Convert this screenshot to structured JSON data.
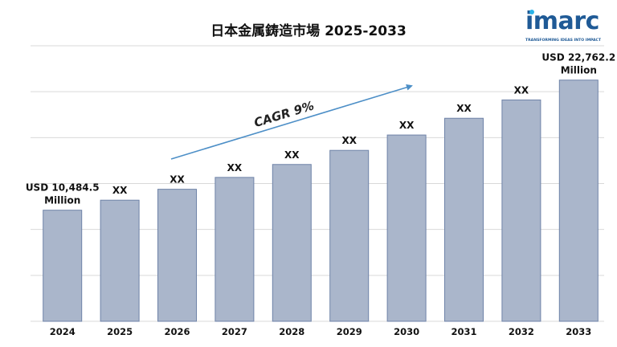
{
  "logo": {
    "word": "imarc",
    "tagline": "TRANSFORMING IDEAS INTO IMPACT"
  },
  "chart_data": {
    "type": "bar",
    "title": "日本金属鋳造市場 2025-2033",
    "categories": [
      "2024",
      "2025",
      "2026",
      "2027",
      "2028",
      "2029",
      "2030",
      "2031",
      "2032",
      "2033"
    ],
    "values": [
      10484.5,
      11430,
      12460,
      13580,
      14800,
      16130,
      17580,
      19160,
      20890,
      22762.2
    ],
    "data_labels": [
      "USD 10,484.5\nMillion",
      "XX",
      "XX",
      "XX",
      "XX",
      "XX",
      "XX",
      "XX",
      "XX",
      "USD 22,762.2\nMillion"
    ],
    "ylim": [
      0,
      26000
    ],
    "grid": true,
    "bar_color": "#aab6cb",
    "bar_edge_color": "#6f83a8",
    "annotation": {
      "text": "CAGR 9%",
      "arrow_color": "#4d8fc7"
    }
  }
}
